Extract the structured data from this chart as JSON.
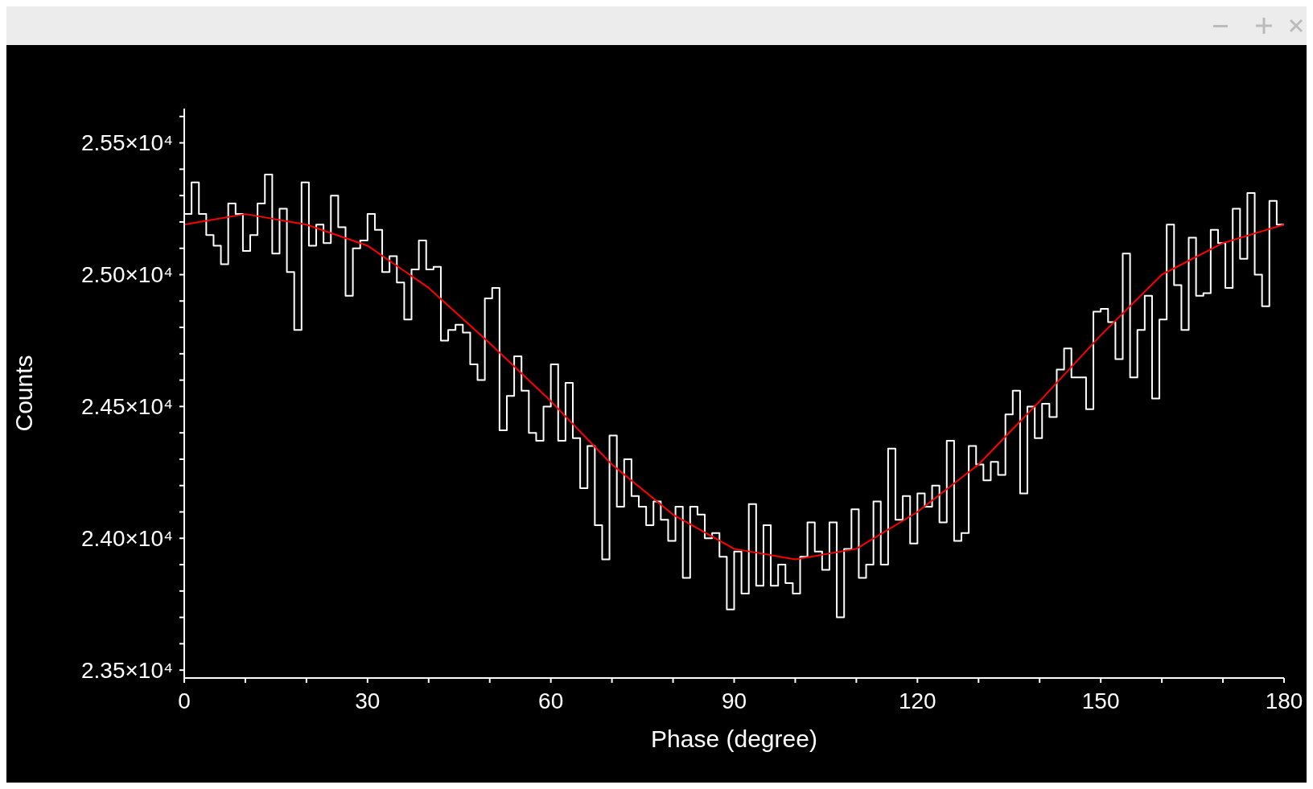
{
  "chart_data": {
    "type": "step",
    "xlabel": "Phase (degree)",
    "ylabel": "Counts",
    "series": [
      {
        "color": "#ffffff",
        "x": [
          0,
          1.2,
          2.4,
          3.6,
          4.8,
          6,
          7.2,
          8.4,
          9.6,
          10.8,
          12,
          13.2,
          14.4,
          15.6,
          16.8,
          18,
          19.2,
          20.4,
          21.6,
          22.8,
          24,
          25.2,
          26.4,
          27.6,
          28.8,
          30,
          31.2,
          32.4,
          33.6,
          34.8,
          36,
          37.2,
          38.4,
          39.6,
          40.8,
          42,
          43.2,
          44.4,
          45.6,
          46.8,
          48,
          49.2,
          50.4,
          51.6,
          52.8,
          54,
          55.2,
          56.4,
          57.6,
          58.8,
          60,
          61.2,
          62.4,
          63.6,
          64.8,
          66,
          67.2,
          68.4,
          69.6,
          70.8,
          72,
          73.2,
          74.4,
          75.6,
          76.8,
          78,
          79.2,
          80.4,
          81.6,
          82.8,
          84,
          85.2,
          86.4,
          87.6,
          88.8,
          90,
          91.2,
          92.4,
          93.6,
          94.8,
          96,
          97.2,
          98.4,
          99.6,
          100.8,
          102,
          103.2,
          104.4,
          105.6,
          106.8,
          108,
          109.2,
          110.4,
          111.6,
          112.8,
          114,
          115.2,
          116.4,
          117.6,
          118.8,
          120,
          121.2,
          122.4,
          123.6,
          124.8,
          126,
          127.2,
          128.4,
          129.6,
          130.8,
          132,
          133.2,
          134.4,
          135.6,
          136.8,
          138,
          139.2,
          140.4,
          141.6,
          142.8,
          144,
          145.2,
          146.4,
          147.6,
          148.8,
          150,
          151.2,
          152.4,
          153.6,
          154.8,
          156,
          157.2,
          158.4,
          159.6,
          160.8,
          162,
          163.2,
          164.4,
          165.6,
          166.8,
          168,
          169.2,
          170.4,
          171.6,
          172.8,
          174,
          175.2,
          176.4,
          177.6,
          178.8,
          180
        ],
        "values": [
          25230,
          25350,
          25230,
          25150,
          25110,
          25040,
          25270,
          25230,
          25090,
          25150,
          25270,
          25380,
          25080,
          25250,
          25010,
          24790,
          25350,
          25110,
          25190,
          25120,
          25300,
          25180,
          24920,
          25100,
          25130,
          25230,
          25170,
          25010,
          25070,
          24970,
          24830,
          25020,
          25130,
          25020,
          25030,
          24750,
          24790,
          24810,
          24780,
          24660,
          24600,
          24910,
          24950,
          24410,
          24540,
          24690,
          24560,
          24400,
          24370,
          24500,
          24660,
          24370,
          24590,
          24380,
          24190,
          24350,
          24050,
          23920,
          24390,
          24120,
          24300,
          24160,
          24120,
          24050,
          24140,
          24070,
          23990,
          24120,
          23850,
          24120,
          24090,
          24000,
          24020,
          23930,
          23730,
          23950,
          23790,
          24130,
          23820,
          24050,
          23820,
          23900,
          23830,
          23790,
          23930,
          24060,
          23950,
          23880,
          24060,
          23700,
          23960,
          24110,
          23850,
          23900,
          24140,
          23900,
          24340,
          24070,
          24160,
          23980,
          24170,
          24120,
          24200,
          24060,
          24370,
          23990,
          24020,
          24350,
          24280,
          24220,
          24290,
          24240,
          24470,
          24560,
          24170,
          24500,
          24380,
          24510,
          24460,
          24640,
          24720,
          24610,
          24610,
          24490,
          24860,
          24870,
          24820,
          24680,
          25080,
          24610,
          24790,
          24920,
          24530,
          24830,
          25190,
          24960,
          24790,
          25140,
          24920,
          24930,
          25170,
          25120,
          24950,
          25250,
          25060,
          25310,
          25000,
          24880,
          25280,
          25190,
          25190
        ]
      },
      {
        "type": "line",
        "color": "#ff0000",
        "x": [
          0,
          10,
          20,
          30,
          40,
          50,
          60,
          70,
          80,
          90,
          100,
          110,
          120,
          130,
          140,
          150,
          160,
          170,
          180
        ],
        "values": [
          25190,
          25230,
          25190,
          25110,
          24950,
          24740,
          24520,
          24280,
          24090,
          23960,
          23920,
          23960,
          24100,
          24280,
          24520,
          24770,
          25000,
          25120,
          25190
        ]
      }
    ],
    "xlim": [
      0,
      180
    ],
    "xticks": [
      0,
      {
        "value": 10,
        "label": null
      },
      {
        "value": 20,
        "label": null
      },
      30,
      {
        "value": 40,
        "label": null
      },
      {
        "value": 50,
        "label": null
      },
      60,
      {
        "value": 70,
        "label": null
      },
      {
        "value": 80,
        "label": null
      },
      90,
      {
        "value": 100,
        "label": null
      },
      {
        "value": 110,
        "label": null
      },
      120,
      {
        "value": 130,
        "label": null
      },
      {
        "value": 140,
        "label": null
      },
      150,
      {
        "value": 160,
        "label": null
      },
      {
        "value": 170,
        "label": null
      },
      180
    ],
    "ylim": [
      23470,
      25630
    ],
    "yticks": [
      {
        "value": 23500,
        "label": "2.35×10⁴"
      },
      {
        "value": 23600,
        "label": null
      },
      {
        "value": 23700,
        "label": null
      },
      {
        "value": 23800,
        "label": null
      },
      {
        "value": 23900,
        "label": null
      },
      {
        "value": 24000,
        "label": "2.40×10⁴"
      },
      {
        "value": 24100,
        "label": null
      },
      {
        "value": 24200,
        "label": null
      },
      {
        "value": 24300,
        "label": null
      },
      {
        "value": 24400,
        "label": null
      },
      {
        "value": 24500,
        "label": "2.45×10⁴"
      },
      {
        "value": 24600,
        "label": null
      },
      {
        "value": 24700,
        "label": null
      },
      {
        "value": 24800,
        "label": null
      },
      {
        "value": 24900,
        "label": null
      },
      {
        "value": 25000,
        "label": "2.50×10⁴"
      },
      {
        "value": 25100,
        "label": null
      },
      {
        "value": 25200,
        "label": null
      },
      {
        "value": 25300,
        "label": null
      },
      {
        "value": 25400,
        "label": null
      },
      {
        "value": 25500,
        "label": "2.55×10⁴"
      },
      {
        "value": 25600,
        "label": null
      }
    ],
    "marker": "none",
    "line_style": "solid",
    "grid": false,
    "legend": false
  }
}
